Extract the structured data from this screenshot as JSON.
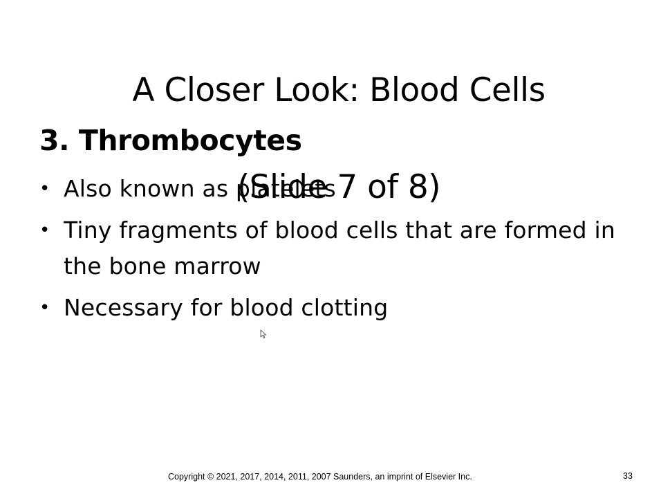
{
  "slide": {
    "title_line1": "A Closer Look:  Blood Cells",
    "title_line2": "(Slide 7 of 8)",
    "heading": "3. Thrombocytes",
    "bullets": [
      {
        "marker": "•",
        "text": "Also known as platelets"
      },
      {
        "marker": "•",
        "text": "Tiny fragments of blood cells that are formed in the bone marrow"
      },
      {
        "marker": "•",
        "text": "Necessary for blood clotting"
      }
    ],
    "footer": "Copyright ©  2021, 2017, 2014, 2011, 2007 Saunders, an imprint of Elsevier Inc.",
    "page_number": "33"
  },
  "cursor": {
    "icon": "mouse-pointer-icon"
  }
}
